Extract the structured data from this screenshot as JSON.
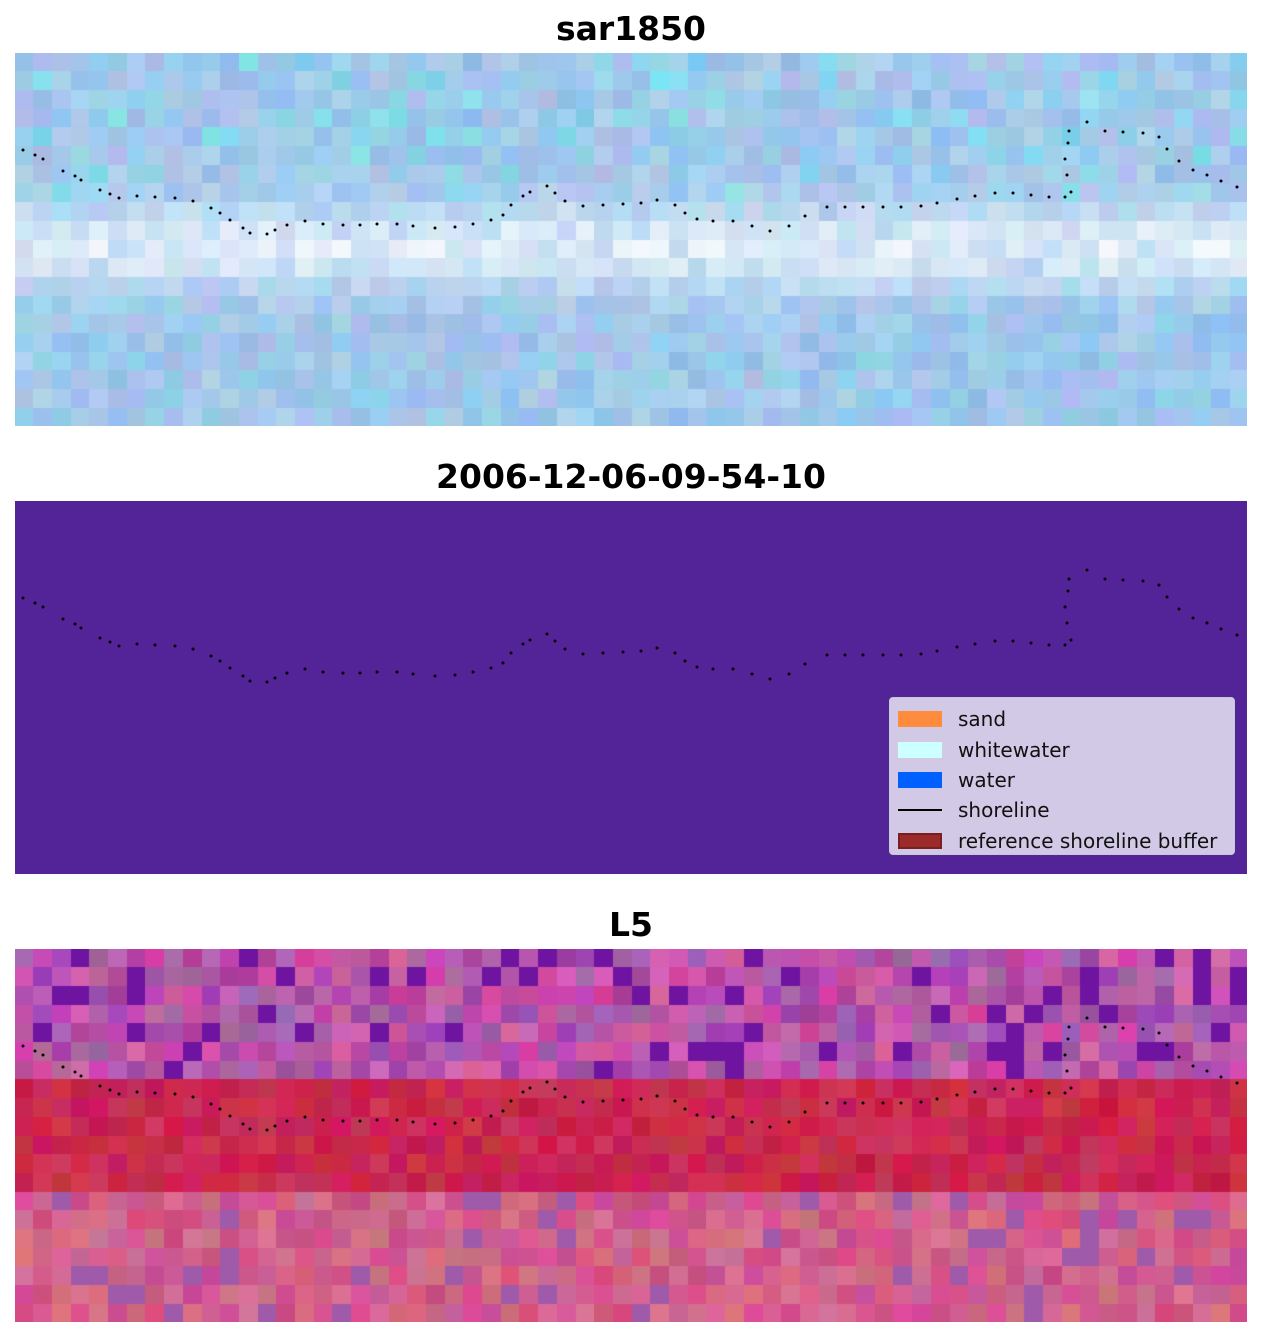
{
  "panels": [
    {
      "title": "sar1850",
      "kind": "sar",
      "palette": "sar"
    },
    {
      "title": "2006-12-06-09-54-10",
      "kind": "classified",
      "fill": "#532497"
    },
    {
      "title": "L5",
      "kind": "ndwi",
      "palette": "l5"
    }
  ],
  "legend": {
    "items": [
      {
        "label": "sand",
        "color": "#ff8c3c",
        "type": "patch"
      },
      {
        "label": "whitewater",
        "color": "#ccffff",
        "type": "patch"
      },
      {
        "label": "water",
        "color": "#0060ff",
        "type": "patch"
      },
      {
        "label": "shoreline",
        "color": "#000000",
        "type": "line"
      },
      {
        "label": "reference shoreline buffer",
        "color": "#9b2a2a",
        "type": "patch"
      }
    ]
  },
  "colors": {
    "shoreline_dots": "#000000",
    "classified_bg": "#532497"
  }
}
